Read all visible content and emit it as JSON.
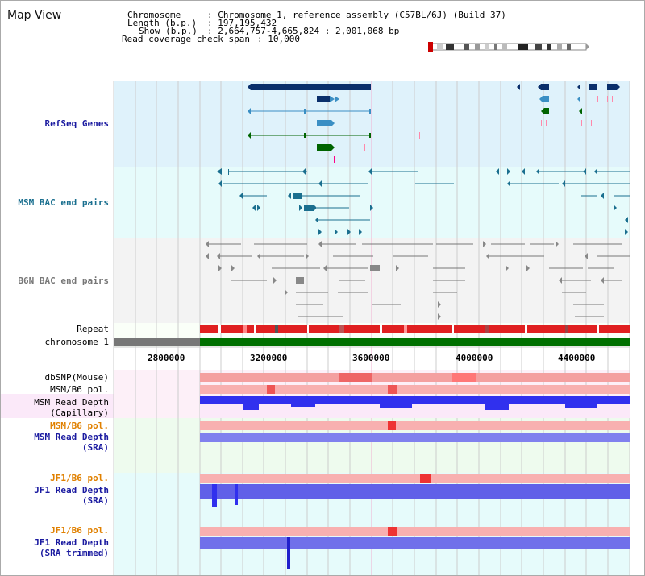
{
  "title": "Map View",
  "header": {
    "chromosome_key": "Chromosome",
    "chromosome_val": ": Chromosome 1, reference assembly (C57BL/6J) (Build 37)",
    "length_key": "Length (b.p.)",
    "length_val": ": 197,195,432",
    "show_key": "Show (b.p.)",
    "show_val": ": 2,664,757-4,665,824 : 2,001,068 bp",
    "coverage_key": "Read coverage check span",
    "coverage_val": ": 10,000"
  },
  "tracks": {
    "refseq": "RefSeq Genes",
    "msm_bac": "MSM BAC end pairs",
    "b6n_bac": "B6N BAC end pairs",
    "repeat": "Repeat",
    "chromosome": "chromosome 1",
    "dbsnp": "dbSNP(Mouse)",
    "msm_b6_pol_1": "MSM/B6 pol.",
    "msm_depth_cap_1": "MSM Read Depth",
    "msm_depth_cap_2": "(Capillary)",
    "msm_b6_pol_2": "MSM/B6 pol.",
    "msm_depth_sra_1": "MSM Read Depth",
    "msm_depth_sra_2": "(SRA)",
    "jf1_b6_pol_1": "JF1/B6 pol.",
    "jf1_depth_sra_1": "JF1 Read Depth",
    "jf1_depth_sra_2": "(SRA)",
    "jf1_b6_pol_2": "JF1/B6 pol.",
    "jf1_depth_trim_1": "JF1 Read Depth",
    "jf1_depth_trim_2": "(SRA trimmed)"
  },
  "axis_ticks": [
    "2800000",
    "3200000",
    "3600000",
    "4000000",
    "4400000"
  ],
  "colors": {
    "refseq_bg": "#dff2fb",
    "msm_bac_bg": "#e6fbfb",
    "b6n_bac_bg": "#f3f3f3",
    "capillary_bg": "#fbe9f9",
    "sra_bg": "#eefbee",
    "jf1_bg": "#e6fbfb",
    "gene_dark": "#0a2f6b",
    "gene_mid": "#3b8fc4",
    "gene_green": "#006400",
    "msm_bac": "#1a6f8f",
    "b6n_bac": "#777777",
    "chrom_gray": "#777777",
    "chrom_green": "#007000",
    "depth_blue": "#3030ee",
    "depth_light": "#8080ee"
  }
}
